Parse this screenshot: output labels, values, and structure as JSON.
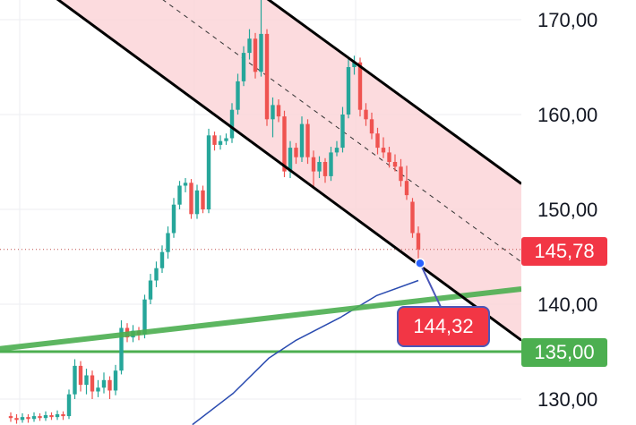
{
  "chart_data": {
    "type": "candlestick",
    "y_ticks": [
      "170,00",
      "160,00",
      "150,00",
      "140,00",
      "130,00"
    ],
    "y_tick_values": [
      170,
      160,
      150,
      140,
      130
    ],
    "ylim": [
      127,
      172
    ],
    "grid": true,
    "colors": {
      "up": "#26a69a",
      "down": "#ef5350",
      "channel_fill": "#fbd5d8",
      "channel_line": "#000000",
      "trendline": "#4caf50",
      "ma": "#2a4bb0",
      "price_badge": "#f23645",
      "level_badge": "#4caf50",
      "callout_border": "#4a56b8"
    },
    "candles": [
      [
        128.2,
        128.6,
        127.6,
        128.0
      ],
      [
        128.0,
        128.4,
        127.4,
        127.8
      ],
      [
        127.8,
        128.5,
        127.5,
        128.1
      ],
      [
        128.1,
        128.4,
        127.5,
        127.9
      ],
      [
        127.9,
        128.6,
        127.6,
        128.2
      ],
      [
        128.2,
        128.5,
        127.7,
        128.0
      ],
      [
        128.0,
        128.7,
        127.7,
        128.3
      ],
      [
        128.3,
        128.6,
        127.8,
        128.1
      ],
      [
        128.1,
        128.8,
        127.8,
        128.4
      ],
      [
        128.4,
        128.7,
        127.8,
        128.2
      ],
      [
        128.2,
        131.0,
        127.9,
        130.5
      ],
      [
        130.5,
        134.2,
        130.0,
        133.5
      ],
      [
        133.5,
        134.0,
        130.8,
        131.5
      ],
      [
        131.5,
        133.2,
        130.5,
        132.5
      ],
      [
        132.5,
        133.0,
        130.0,
        130.8
      ],
      [
        130.8,
        132.0,
        130.2,
        131.2
      ],
      [
        131.2,
        132.8,
        130.6,
        132.0
      ],
      [
        132.0,
        132.4,
        130.0,
        130.9
      ],
      [
        130.9,
        133.6,
        130.4,
        133.0
      ],
      [
        133.0,
        138.3,
        132.6,
        137.5
      ],
      [
        137.5,
        138.0,
        136.0,
        136.5
      ],
      [
        136.5,
        137.8,
        136.0,
        137.2
      ],
      [
        137.2,
        137.6,
        136.2,
        136.8
      ],
      [
        136.8,
        141.0,
        136.4,
        140.5
      ],
      [
        140.5,
        143.2,
        140.0,
        142.5
      ],
      [
        142.5,
        144.5,
        141.8,
        143.8
      ],
      [
        143.8,
        146.2,
        143.3,
        145.5
      ],
      [
        145.5,
        148.2,
        144.8,
        147.5
      ],
      [
        147.5,
        151.2,
        147.0,
        150.5
      ],
      [
        150.5,
        153.0,
        150.0,
        152.5
      ],
      [
        152.5,
        153.3,
        151.8,
        152.8
      ],
      [
        152.8,
        153.2,
        149.0,
        149.5
      ],
      [
        149.5,
        152.6,
        149.0,
        152.0
      ],
      [
        152.0,
        152.5,
        149.6,
        150.0
      ],
      [
        150.0,
        158.5,
        149.6,
        157.8
      ],
      [
        157.8,
        158.2,
        156.2,
        156.8
      ],
      [
        156.8,
        157.8,
        156.3,
        157.2
      ],
      [
        157.2,
        158.0,
        156.8,
        157.5
      ],
      [
        157.5,
        161.2,
        157.0,
        160.5
      ],
      [
        160.5,
        164.3,
        160.0,
        163.5
      ],
      [
        163.5,
        167.2,
        163.0,
        166.5
      ],
      [
        166.5,
        169.0,
        165.8,
        168.0
      ],
      [
        168.0,
        168.6,
        163.8,
        164.5
      ],
      [
        164.5,
        172.2,
        164.0,
        168.5
      ],
      [
        168.5,
        169.0,
        158.8,
        159.5
      ],
      [
        159.5,
        161.8,
        157.6,
        161.0
      ],
      [
        161.0,
        161.6,
        159.2,
        159.8
      ],
      [
        159.8,
        160.4,
        153.4,
        154.0
      ],
      [
        154.0,
        157.2,
        153.3,
        156.5
      ],
      [
        156.5,
        157.0,
        154.8,
        155.5
      ],
      [
        155.5,
        159.8,
        155.0,
        159.0
      ],
      [
        159.0,
        159.5,
        154.8,
        155.5
      ],
      [
        155.5,
        156.2,
        152.2,
        154.0
      ],
      [
        154.0,
        155.6,
        153.3,
        155.0
      ],
      [
        155.0,
        155.4,
        152.8,
        153.5
      ],
      [
        153.5,
        156.6,
        153.0,
        156.0
      ],
      [
        156.0,
        157.2,
        155.6,
        156.5
      ],
      [
        156.5,
        160.8,
        156.0,
        160.0
      ],
      [
        160.0,
        166.0,
        159.6,
        165.0
      ],
      [
        165.0,
        166.2,
        164.2,
        165.5
      ],
      [
        165.5,
        166.0,
        159.8,
        160.5
      ],
      [
        160.5,
        161.2,
        158.8,
        159.5
      ],
      [
        159.5,
        160.2,
        157.4,
        158.0
      ],
      [
        158.0,
        158.6,
        155.8,
        156.5
      ],
      [
        156.5,
        157.6,
        155.4,
        156.0
      ],
      [
        156.0,
        156.6,
        154.4,
        155.0
      ],
      [
        155.0,
        155.8,
        154.0,
        154.5
      ],
      [
        154.5,
        155.3,
        152.4,
        153.0
      ],
      [
        153.0,
        154.6,
        151.0,
        151.5
      ],
      [
        150.8,
        151.2,
        147.0,
        147.5
      ],
      [
        147.5,
        148.2,
        144.32,
        145.78
      ]
    ],
    "channel": {
      "upper": [
        [
          44.3,
          172.1
        ],
        [
          87.7,
          152.7
        ]
      ],
      "lower": [
        [
          8.15,
          172.1
        ],
        [
          87.7,
          136.2
        ]
      ]
    },
    "trendline": [
      [
        -1.85,
        135.3
      ],
      [
        87.7,
        141.6
      ]
    ],
    "horizontal_level": 135.0,
    "moving_average": [
      [
        31.2,
        127.3
      ],
      [
        38.2,
        130.6
      ],
      [
        44.3,
        134.3
      ],
      [
        49,
        136.2
      ],
      [
        56.6,
        138.6
      ],
      [
        62.8,
        140.9
      ],
      [
        70,
        142.5
      ]
    ],
    "current_price": 145.78,
    "current_price_label": "145,78",
    "level_label": "135,00",
    "callout": {
      "label": "144,32",
      "index": 70.3,
      "price": 144.32
    }
  }
}
